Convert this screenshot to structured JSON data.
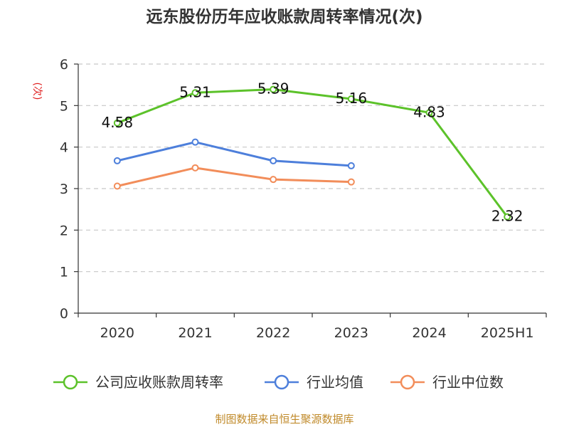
{
  "chart_data": {
    "type": "line",
    "title": "远东股份历年应收账款周转率情况(次)",
    "ylabel": "(次)",
    "xlabel": "",
    "categories": [
      "2020",
      "2021",
      "2022",
      "2023",
      "2024",
      "2025H1"
    ],
    "ylim": [
      0,
      6
    ],
    "yticks": [
      0,
      1,
      2,
      3,
      4,
      5,
      6
    ],
    "grid": true,
    "legend_position": "bottom",
    "series": [
      {
        "name": "公司应收账款周转率",
        "color": "#5cc22a",
        "values": [
          4.58,
          5.31,
          5.39,
          5.16,
          4.83,
          2.32
        ],
        "labels": [
          "4.58",
          "5.31",
          "5.39",
          "5.16",
          "4.83",
          "2.32"
        ]
      },
      {
        "name": "行业均值",
        "color": "#4d7fdb",
        "values": [
          3.67,
          4.12,
          3.67,
          3.55,
          null,
          null
        ]
      },
      {
        "name": "行业中位数",
        "color": "#f28d5a",
        "values": [
          3.06,
          3.5,
          3.22,
          3.16,
          null,
          null
        ]
      }
    ],
    "source": "制图数据来自恒生聚源数据库"
  }
}
